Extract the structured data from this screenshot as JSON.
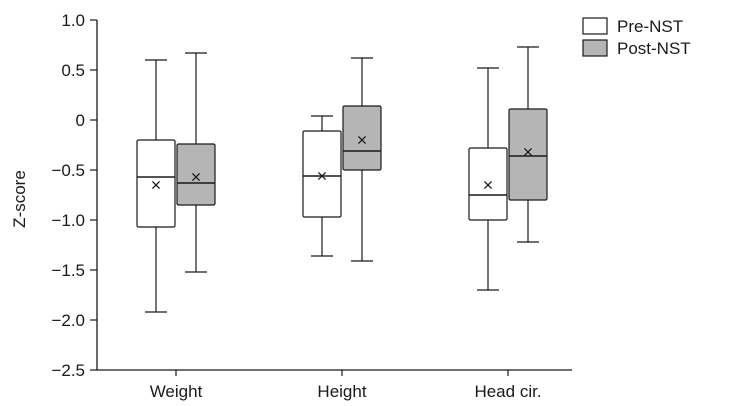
{
  "chart_data": {
    "type": "boxplot",
    "ylabel": "Z-score",
    "xlabel": "",
    "ylim": [
      -2.5,
      1.0
    ],
    "yticks": [
      1.0,
      0.5,
      0,
      -0.5,
      -1.0,
      -1.5,
      -2.0,
      -2.5
    ],
    "ytick_labels": [
      "1.0",
      "0.5",
      "0",
      "-0.5",
      "-1.0",
      "-1.5",
      "-2.0",
      "-2.5"
    ],
    "categories": [
      "Weight",
      "Height",
      "Head cir."
    ],
    "legend_position": "top-right",
    "grid": false,
    "series": [
      {
        "name": "Pre-NST",
        "color": "#ffffff",
        "boxes": [
          {
            "min": -1.92,
            "q1": -1.07,
            "median": -0.57,
            "q3": -0.2,
            "max": 0.6,
            "mean": -0.65
          },
          {
            "min": -1.36,
            "q1": -0.97,
            "median": -0.56,
            "q3": -0.11,
            "max": 0.04,
            "mean": -0.56
          },
          {
            "min": -1.7,
            "q1": -1.0,
            "median": -0.75,
            "q3": -0.28,
            "max": 0.52,
            "mean": -0.65
          }
        ]
      },
      {
        "name": "Post-NST",
        "color": "#b5b5b5",
        "boxes": [
          {
            "min": -1.52,
            "q1": -0.85,
            "median": -0.63,
            "q3": -0.24,
            "max": 0.67,
            "mean": -0.57
          },
          {
            "min": -1.41,
            "q1": -0.5,
            "median": -0.31,
            "q3": 0.14,
            "max": 0.62,
            "mean": -0.2
          },
          {
            "min": -1.22,
            "q1": -0.8,
            "median": -0.36,
            "q3": 0.11,
            "max": 0.73,
            "mean": -0.32
          }
        ]
      }
    ]
  }
}
